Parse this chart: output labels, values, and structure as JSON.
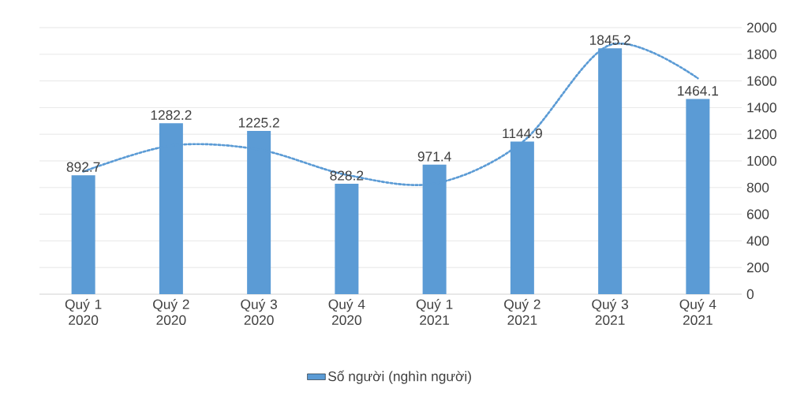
{
  "chart_data": {
    "type": "bar",
    "categories": [
      "Quý 1 2020",
      "Quý 2 2020",
      "Quý 3 2020",
      "Quý 4 2020",
      "Quý 1 2021",
      "Quý 2 2021",
      "Quý 3 2021",
      "Quý 4 2021"
    ],
    "series": [
      {
        "name": "Số người (nghìn người)",
        "color": "#5b9bd5",
        "values": [
          892.7,
          1282.2,
          1225.2,
          828.2,
          971.4,
          1144.9,
          1845.2,
          1464.1
        ],
        "value_labels": [
          "892.7",
          "1282.2",
          "1225.2",
          "828.2",
          "971.4",
          "1144.9",
          "1845.2",
          "1464.1"
        ]
      },
      {
        "type": "line",
        "color": "#5b9bd5",
        "line_style": "dotted",
        "values": [
          920,
          1115,
          1085,
          895,
          830,
          1140,
          1870,
          1620
        ]
      }
    ],
    "ylim": [
      0,
      2000
    ],
    "yticks": [
      0,
      200,
      400,
      600,
      800,
      1000,
      1200,
      1400,
      1600,
      1800,
      2000
    ],
    "grid": "y",
    "legend": "bottom",
    "marker": "none"
  }
}
